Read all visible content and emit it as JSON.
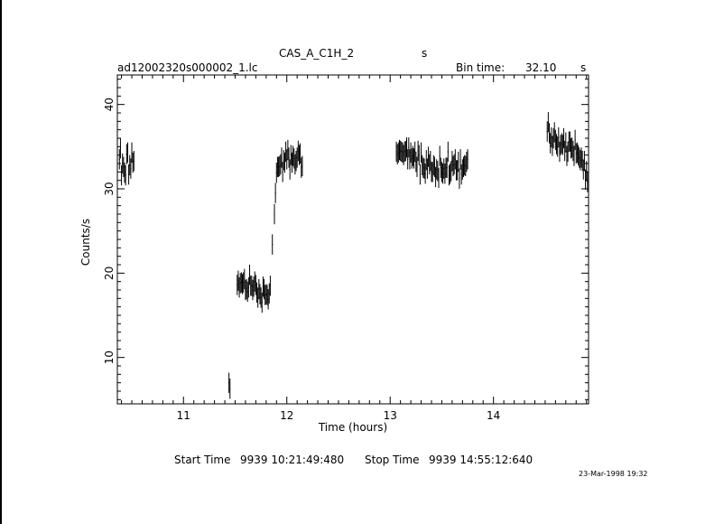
{
  "header": {
    "target": "CAS_A_C1H_2",
    "target_unit": "s",
    "filename": "ad12002320s000002_1.lc",
    "bin_label": "Bin time:",
    "bin_value": "32.10",
    "bin_unit": "s"
  },
  "footer": {
    "start_label": "Start Time",
    "start_value": "9939  10:21:49:480",
    "stop_label": "Stop Time",
    "stop_value": "9939  14:55:12:640",
    "timestamp": "23-Mar-1998 19:32"
  },
  "chart_data": {
    "type": "scatter",
    "xlabel": "Time (hours)",
    "ylabel": "Counts/s",
    "xlim": [
      10.36,
      14.92
    ],
    "ylim": [
      4.5,
      43.5
    ],
    "xticks": [
      11,
      12,
      13,
      14
    ],
    "yticks": [
      10,
      20,
      30,
      40
    ],
    "series": [
      {
        "x": [
          10.38,
          10.39,
          10.4,
          10.41,
          10.42,
          10.43,
          10.44,
          10.45,
          10.46,
          10.47,
          10.48,
          10.49,
          10.5,
          10.51,
          10.52,
          11.44,
          11.45,
          11.52,
          11.53,
          11.54,
          11.55,
          11.56,
          11.57,
          11.58,
          11.59,
          11.6,
          11.61,
          11.62,
          11.63,
          11.64,
          11.65,
          11.66,
          11.67,
          11.68,
          11.69,
          11.7,
          11.71,
          11.72,
          11.73,
          11.74,
          11.75,
          11.76,
          11.77,
          11.78,
          11.79,
          11.8,
          11.81,
          11.82,
          11.83,
          11.84,
          11.86,
          11.88,
          11.89,
          11.9,
          11.91,
          11.92,
          11.93,
          11.94,
          11.95,
          11.96,
          11.97,
          11.98,
          11.99,
          12.0,
          12.01,
          12.02,
          12.03,
          12.04,
          12.05,
          12.06,
          12.07,
          12.08,
          12.09,
          12.1,
          12.11,
          12.12,
          12.13,
          12.14,
          12.15,
          13.06,
          13.07,
          13.08,
          13.09,
          13.1,
          13.11,
          13.12,
          13.13,
          13.14,
          13.15,
          13.16,
          13.17,
          13.18,
          13.19,
          13.2,
          13.21,
          13.22,
          13.23,
          13.24,
          13.25,
          13.26,
          13.27,
          13.28,
          13.29,
          13.3,
          13.31,
          13.32,
          13.33,
          13.34,
          13.35,
          13.36,
          13.37,
          13.38,
          13.39,
          13.4,
          13.41,
          13.42,
          13.43,
          13.44,
          13.45,
          13.46,
          13.47,
          13.48,
          13.49,
          13.5,
          13.51,
          13.52,
          13.53,
          13.54,
          13.55,
          13.56,
          13.57,
          13.58,
          13.59,
          13.6,
          13.61,
          13.62,
          13.63,
          13.64,
          13.65,
          13.66,
          13.67,
          13.68,
          13.69,
          13.7,
          13.71,
          13.72,
          13.73,
          13.74,
          13.75,
          14.52,
          14.53,
          14.54,
          14.55,
          14.56,
          14.57,
          14.58,
          14.59,
          14.6,
          14.61,
          14.62,
          14.63,
          14.64,
          14.65,
          14.66,
          14.67,
          14.68,
          14.69,
          14.7,
          14.71,
          14.72,
          14.73,
          14.74,
          14.75,
          14.76,
          14.77,
          14.78,
          14.79,
          14.8,
          14.81,
          14.82,
          14.83,
          14.84,
          14.85,
          14.86,
          14.87,
          14.88,
          14.89,
          14.9,
          14.91
        ],
        "y": [
          33.5,
          34.8,
          31.6,
          33.0,
          32.6,
          31.9,
          31.6,
          34.1,
          34.3,
          31.7,
          32.8,
          32.4,
          34.3,
          33.1,
          33.3,
          7.0,
          6.3,
          18.6,
          19.1,
          18.3,
          18.8,
          18.9,
          18.7,
          18.9,
          19.3,
          18.0,
          18.1,
          17.8,
          18.3,
          19.8,
          18.5,
          18.5,
          18.0,
          18.4,
          19.0,
          18.6,
          17.7,
          17.1,
          18.1,
          17.5,
          17.1,
          16.5,
          18.4,
          18.1,
          17.4,
          17.5,
          17.4,
          16.9,
          17.6,
          18.5,
          23.4,
          27.0,
          29.5,
          31.9,
          32.6,
          32.6,
          32.7,
          32.9,
          33.7,
          32.0,
          33.4,
          33.1,
          34.4,
          33.5,
          34.6,
          33.7,
          32.3,
          34.0,
          33.1,
          33.9,
          33.6,
          32.9,
          33.3,
          33.7,
          34.5,
          34.0,
          34.2,
          32.5,
          32.7,
          34.4,
          34.1,
          34.3,
          34.6,
          34.5,
          34.4,
          34.3,
          34.0,
          34.4,
          34.5,
          34.9,
          33.5,
          34.9,
          33.5,
          34.3,
          33.6,
          33.9,
          33.6,
          34.4,
          33.2,
          32.6,
          34.5,
          34.0,
          31.7,
          34.3,
          32.8,
          32.5,
          32.4,
          31.8,
          33.4,
          32.4,
          33.8,
          32.9,
          33.3,
          32.0,
          32.0,
          32.8,
          32.6,
          31.4,
          32.3,
          32.1,
          31.3,
          33.9,
          32.5,
          32.0,
          31.8,
          32.4,
          31.8,
          32.5,
          32.5,
          34.4,
          31.6,
          31.8,
          32.1,
          33.3,
          32.7,
          32.9,
          33.5,
          32.2,
          32.2,
          33.2,
          31.2,
          33.5,
          31.7,
          32.3,
          32.6,
          32.8,
          32.7,
          33.2,
          33.5,
          36.8,
          37.9,
          36.6,
          35.4,
          36.1,
          35.1,
          36.0,
          36.7,
          35.8,
          35.3,
          35.0,
          36.1,
          34.4,
          35.2,
          35.4,
          35.2,
          36.0,
          34.5,
          35.5,
          33.9,
          34.4,
          35.6,
          35.6,
          34.8,
          34.9,
          34.5,
          33.9,
          35.8,
          34.2,
          34.3,
          34.0,
          33.7,
          33.4,
          33.7,
          33.3,
          32.3,
          33.3,
          31.1,
          32.1,
          30.8
        ],
        "err": 1.2
      }
    ]
  }
}
